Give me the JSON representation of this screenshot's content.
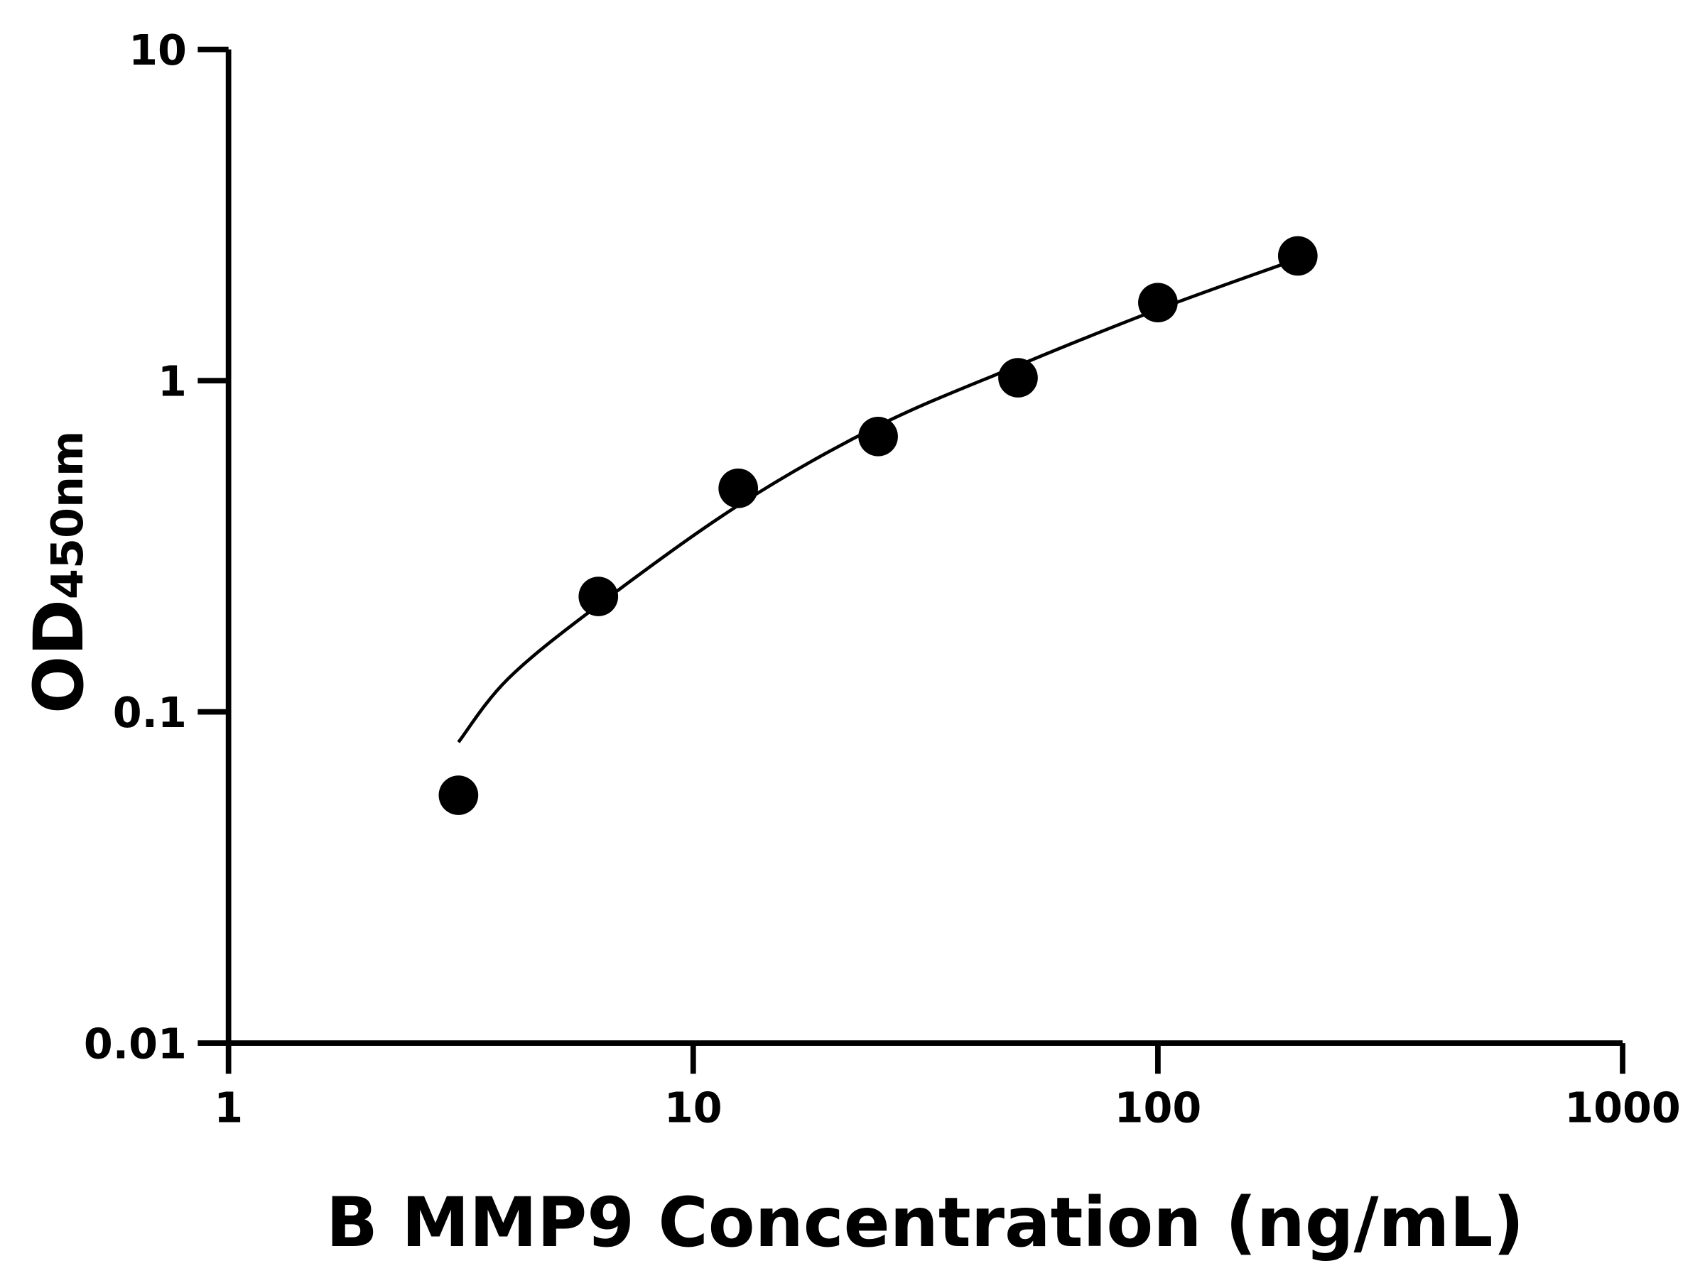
{
  "chart_data": {
    "type": "scatter",
    "title": "",
    "xlabel": "B MMP9 Concentration (ng/mL)",
    "ylabel_main": "OD",
    "ylabel_sub": "450nm",
    "x_scale": "log",
    "y_scale": "log",
    "xlim": [
      1,
      1000
    ],
    "ylim": [
      0.01,
      10
    ],
    "x_ticks": [
      "1",
      "10",
      "100",
      "1000"
    ],
    "y_ticks": [
      "0.01",
      "0.1",
      "1",
      "10"
    ],
    "grid": false,
    "legend": "none",
    "color": "#000000",
    "points": {
      "x": [
        3.125,
        6.25,
        12.5,
        25,
        50,
        100,
        200
      ],
      "y": [
        0.056,
        0.223,
        0.473,
        0.678,
        1.02,
        1.72,
        2.38
      ]
    },
    "fit_curve": {
      "x": [
        3.125,
        4,
        6.25,
        12.5,
        25,
        50,
        100,
        200
      ],
      "y": [
        0.081,
        0.126,
        0.21,
        0.42,
        0.73,
        1.11,
        1.64,
        2.33
      ]
    }
  }
}
